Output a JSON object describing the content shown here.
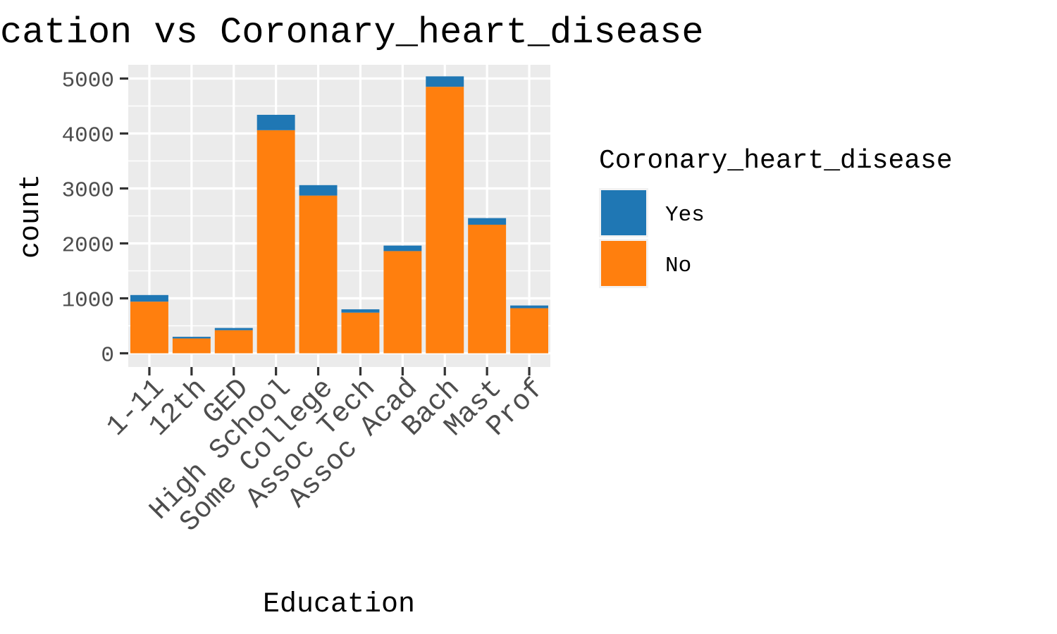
{
  "chart_data": {
    "type": "bar",
    "stacked": true,
    "title": "cation vs Coronary_heart_disease",
    "xlabel": "Education",
    "ylabel": "count",
    "ylim": [
      -250,
      5250
    ],
    "yticks": [
      0,
      1000,
      2000,
      3000,
      4000,
      5000
    ],
    "yticks_labels": [
      "0",
      "1000",
      "2000",
      "3000",
      "4000",
      "5000"
    ],
    "grid": true,
    "legend_position": "right",
    "legend_title": "Coronary_heart_disease",
    "categories": [
      "1-11",
      "12th",
      "GED",
      "High School",
      "Some College",
      "Assoc Tech",
      "Assoc Acad",
      "Bach",
      "Mast",
      "Prof"
    ],
    "series": [
      {
        "name": "No",
        "color": "#FF7F0E",
        "values": [
          940,
          270,
          420,
          4060,
          2870,
          740,
          1860,
          4850,
          2340,
          820
        ]
      },
      {
        "name": "Yes",
        "color": "#1F77B4",
        "values": [
          120,
          30,
          40,
          280,
          190,
          60,
          100,
          190,
          120,
          50
        ]
      }
    ],
    "legend_entries": [
      {
        "label": "Yes",
        "color": "#1F77B4"
      },
      {
        "label": "No",
        "color": "#FF7F0E"
      }
    ],
    "panel_color": "#EBEBEB",
    "grid_color": "#FFFFFF"
  }
}
